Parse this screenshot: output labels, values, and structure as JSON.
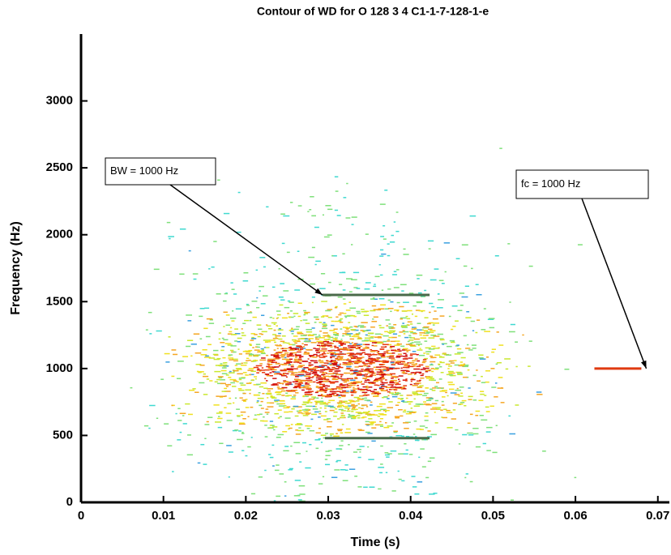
{
  "chart_data": {
    "type": "contour",
    "title": "Contour of WD for O 128 3 4 C1-1-7-128-1-e",
    "xlabel": "Time (s)",
    "ylabel": "Frequency (Hz)",
    "xlim": [
      0,
      0.0714
    ],
    "ylim": [
      0,
      3500
    ],
    "xticks": [
      0,
      0.01,
      0.02,
      0.03,
      0.04,
      0.05,
      0.06,
      0.07
    ],
    "yticks": [
      0,
      500,
      1000,
      1500,
      2000,
      2500,
      3000
    ],
    "annotations": [
      {
        "text": "BW = 1000 Hz",
        "x": 0.0293,
        "y": 1550
      },
      {
        "text": "fc = 1000 Hz",
        "x": 0.0686,
        "y": 1000
      }
    ],
    "bw_lines": [
      {
        "y": 1550,
        "x": [
          0.0293,
          0.0423
        ]
      },
      {
        "y": 480,
        "x": [
          0.0296,
          0.0423
        ]
      }
    ],
    "fc_line": {
      "y": 1000,
      "x": [
        0.0623,
        0.068
      ],
      "color": "#e03a10"
    }
  }
}
